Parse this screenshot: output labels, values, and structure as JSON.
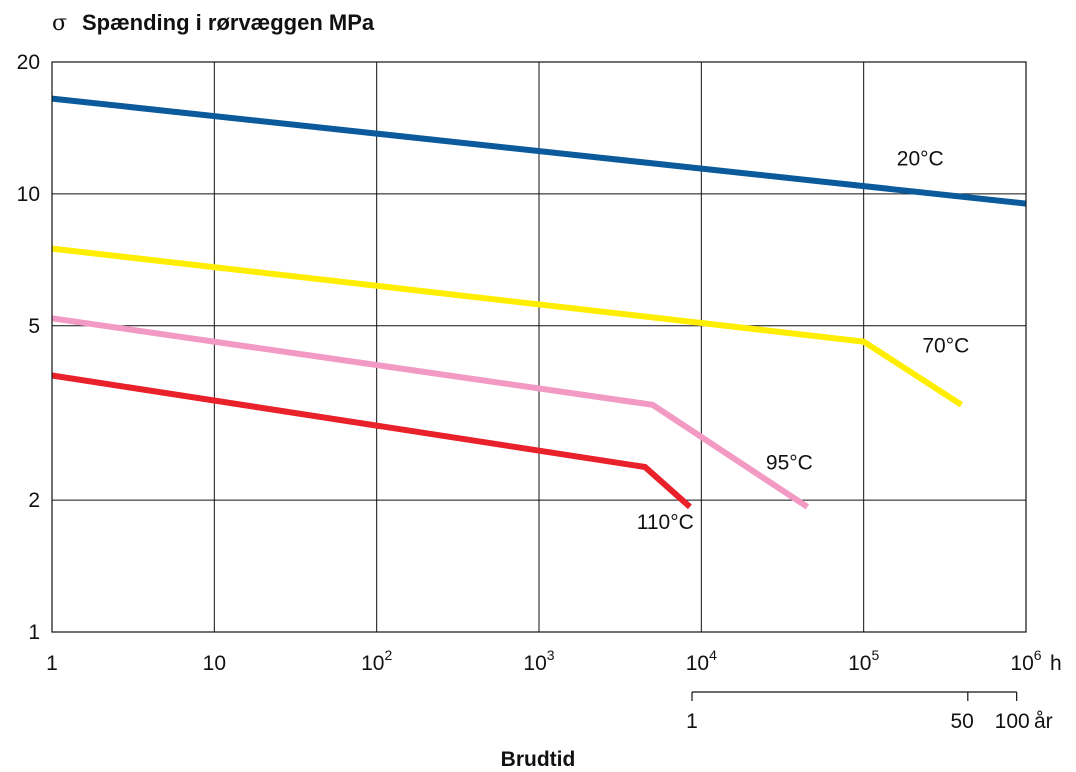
{
  "chart_data": {
    "type": "line",
    "title_symbol": "σ",
    "title": "Spænding i rørvæggen MPa",
    "xlabel": "Brudtid",
    "x_scale": "log",
    "y_scale": "log",
    "xlim": [
      1,
      1000000
    ],
    "ylim": [
      1,
      20
    ],
    "grid": true,
    "x_ticks": [
      {
        "value": 1,
        "base": "1",
        "exp": ""
      },
      {
        "value": 10,
        "base": "10",
        "exp": ""
      },
      {
        "value": 100,
        "base": "10",
        "exp": "2"
      },
      {
        "value": 1000,
        "base": "10",
        "exp": "3"
      },
      {
        "value": 10000,
        "base": "10",
        "exp": "4"
      },
      {
        "value": 100000,
        "base": "10",
        "exp": "5"
      },
      {
        "value": 1000000,
        "base": "10",
        "exp": "6"
      }
    ],
    "x_unit": "h",
    "y_ticks": [
      {
        "value": 20,
        "label": "20"
      },
      {
        "value": 10,
        "label": "10"
      },
      {
        "value": 5,
        "label": "5"
      },
      {
        "value": 2,
        "label": "2"
      },
      {
        "value": 1,
        "label": "1"
      }
    ],
    "secondary_x_axis": {
      "unit": "år",
      "ticks": [
        {
          "value": 1,
          "label": "1"
        },
        {
          "value": 50,
          "label": "50"
        },
        {
          "value": 100,
          "label": "100"
        }
      ]
    },
    "series": [
      {
        "name": "20°C",
        "color": "#0b5a9c",
        "label_at": [
          160000,
          11.6
        ],
        "points": [
          [
            1,
            16.5
          ],
          [
            1000000,
            9.5
          ]
        ]
      },
      {
        "name": "70°C",
        "color": "#ffee00",
        "label_at": [
          230000,
          4.35
        ],
        "points": [
          [
            1,
            7.5
          ],
          [
            100000,
            4.6
          ],
          [
            400000,
            3.3
          ]
        ]
      },
      {
        "name": "95°C",
        "color": "#f29ac4",
        "label_at": [
          25000,
          2.35
        ],
        "points": [
          [
            1,
            5.2
          ],
          [
            5000,
            3.3
          ],
          [
            45000,
            1.93
          ]
        ]
      },
      {
        "name": "110°C",
        "color": "#e8212a",
        "label_at": [
          4000,
          1.72
        ],
        "points": [
          [
            1,
            3.85
          ],
          [
            4500,
            2.38
          ],
          [
            8500,
            1.93
          ]
        ]
      }
    ]
  }
}
